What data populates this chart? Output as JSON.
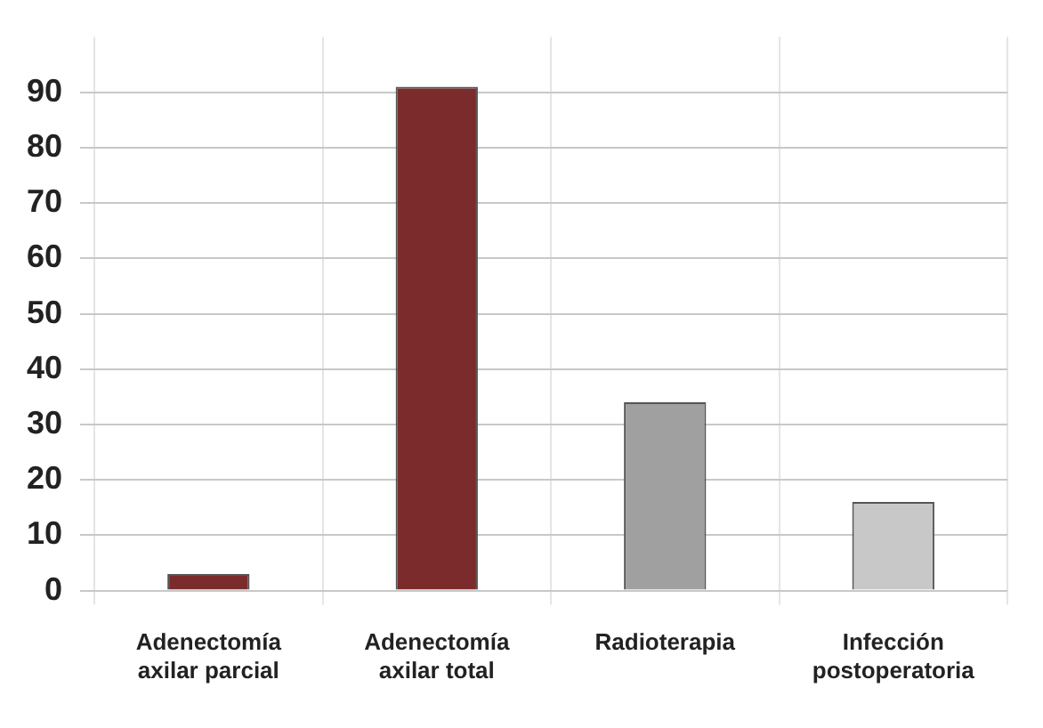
{
  "chart_data": {
    "type": "bar",
    "categories": [
      "Adenectomía axilar parcial",
      "Adenectomía axilar total",
      "Radioterapia",
      "Infección postoperatoria"
    ],
    "values": [
      3,
      91,
      34,
      16
    ],
    "colors": [
      "#7b2b2b",
      "#7b2b2b",
      "#a0a0a0",
      "#c8c8c8"
    ],
    "ylim": [
      0,
      100
    ],
    "yticks": [
      0,
      10,
      20,
      30,
      40,
      50,
      60,
      70,
      80,
      90
    ],
    "grid": true
  }
}
